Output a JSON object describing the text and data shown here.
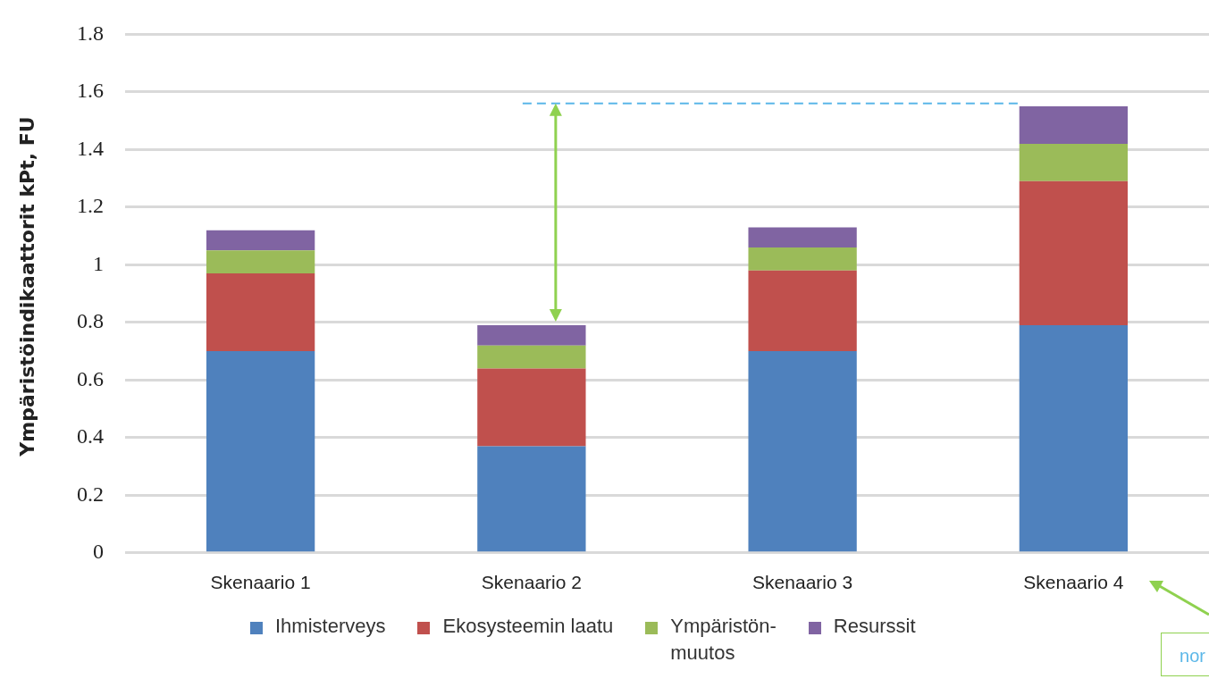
{
  "chart_data": {
    "type": "bar",
    "stacked": true,
    "ylabel": "Ympäristöindikaattorit  kPt, FU",
    "categories": [
      "Skenaario 1",
      "Skenaario 2",
      "Skenaario 3",
      "Skenaario 4"
    ],
    "series": [
      {
        "name": "Ihmisterveys",
        "color": "#4f81bd",
        "values": [
          0.7,
          0.37,
          0.7,
          0.79
        ]
      },
      {
        "name": "Ekosysteemin laatu",
        "color": "#c0504d",
        "values": [
          0.27,
          0.27,
          0.28,
          0.5
        ]
      },
      {
        "name": "Ympäristön-muutos",
        "color": "#9bbb59",
        "values": [
          0.08,
          0.08,
          0.08,
          0.13
        ]
      },
      {
        "name": "Resurssit",
        "color": "#8064a2",
        "values": [
          0.07,
          0.07,
          0.07,
          0.13
        ]
      }
    ],
    "ylim": [
      0,
      1.8
    ],
    "yticks": [
      0,
      0.2,
      0.4,
      0.6,
      0.8,
      1,
      1.2,
      1.4,
      1.6,
      1.8
    ],
    "grid": "y",
    "legend": "bottom",
    "ref_lines": [
      {
        "axis": "y",
        "value": 1.56,
        "color": "#5bb7e8",
        "line_style": "dashed"
      }
    ],
    "annotations": [
      "nor"
    ]
  }
}
